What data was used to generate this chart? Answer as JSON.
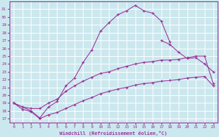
{
  "xlabel": "Windchill (Refroidissement éolien,°C)",
  "bg_color": "#cce8ef",
  "grid_color": "#ffffff",
  "line_color": "#993399",
  "spine_color": "#993399",
  "xlim": [
    -0.5,
    23.5
  ],
  "ylim": [
    16.5,
    32.0
  ],
  "xticks": [
    0,
    1,
    2,
    3,
    4,
    5,
    6,
    7,
    8,
    9,
    10,
    11,
    12,
    13,
    14,
    15,
    16,
    17,
    18,
    19,
    20,
    21,
    22,
    23
  ],
  "yticks": [
    17,
    18,
    19,
    20,
    21,
    22,
    23,
    24,
    25,
    26,
    27,
    28,
    29,
    30,
    31
  ],
  "curve1_x": [
    0,
    1,
    2,
    3,
    4,
    5,
    6,
    7,
    8,
    9,
    10,
    11,
    12,
    13,
    14,
    15,
    16,
    17,
    18
  ],
  "curve1_y": [
    19.0,
    18.5,
    18.0,
    17.1,
    18.5,
    19.2,
    21.2,
    22.2,
    24.2,
    25.8,
    28.2,
    29.3,
    30.3,
    30.8,
    31.5,
    30.8,
    30.5,
    29.5,
    26.8
  ],
  "curve2_x": [
    17,
    18,
    19,
    20,
    21,
    22,
    23
  ],
  "curve2_y": [
    27.0,
    26.5,
    25.5,
    24.7,
    24.8,
    24.0,
    23.0
  ],
  "curve3_x": [
    0,
    1,
    2,
    3,
    4,
    5,
    6,
    7,
    8,
    9,
    10,
    11,
    12,
    13,
    14,
    15,
    16,
    17,
    18,
    19,
    20,
    21,
    22,
    23
  ],
  "curve3_y": [
    19.0,
    18.5,
    18.3,
    18.3,
    19.0,
    19.5,
    20.5,
    21.2,
    21.8,
    22.3,
    22.8,
    23.0,
    23.4,
    23.7,
    24.0,
    24.2,
    24.3,
    24.5,
    24.5,
    24.6,
    24.8,
    25.0,
    25.0,
    21.5
  ],
  "curve4_x": [
    0,
    1,
    2,
    3,
    4,
    5,
    6,
    7,
    8,
    9,
    10,
    11,
    12,
    13,
    14,
    15,
    16,
    17,
    18,
    19,
    20,
    21,
    22,
    23
  ],
  "curve4_y": [
    19.0,
    18.2,
    17.9,
    17.0,
    17.5,
    17.8,
    18.3,
    18.8,
    19.3,
    19.7,
    20.2,
    20.5,
    20.8,
    21.0,
    21.3,
    21.5,
    21.6,
    21.8,
    21.9,
    22.0,
    22.2,
    22.3,
    22.4,
    21.2
  ]
}
